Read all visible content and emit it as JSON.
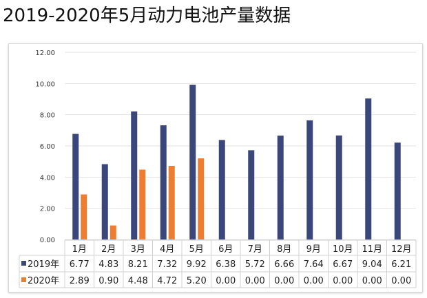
{
  "title": "2019-2020年5月动力电池产量数据",
  "chart_data": {
    "type": "bar",
    "title": "2019-2020年5月动力电池产量数据",
    "categories": [
      "1月",
      "2月",
      "3月",
      "4月",
      "5月",
      "6月",
      "7月",
      "8月",
      "9月",
      "10月",
      "11月",
      "12月"
    ],
    "series": [
      {
        "name": "2019年",
        "color": "#3b4679",
        "values": [
          6.77,
          4.83,
          8.21,
          7.32,
          9.92,
          6.38,
          5.72,
          6.66,
          7.64,
          6.67,
          9.04,
          6.21
        ]
      },
      {
        "name": "2020年",
        "color": "#ed7d31",
        "values": [
          2.89,
          0.9,
          4.48,
          4.72,
          5.2,
          0.0,
          0.0,
          0.0,
          0.0,
          0.0,
          0.0,
          0.0
        ]
      }
    ],
    "ylim": [
      0,
      12
    ],
    "yticks": [
      "0.00",
      "2.00",
      "4.00",
      "6.00",
      "8.00",
      "10.00",
      "12.00"
    ],
    "grid": true,
    "legend": "data-table"
  }
}
